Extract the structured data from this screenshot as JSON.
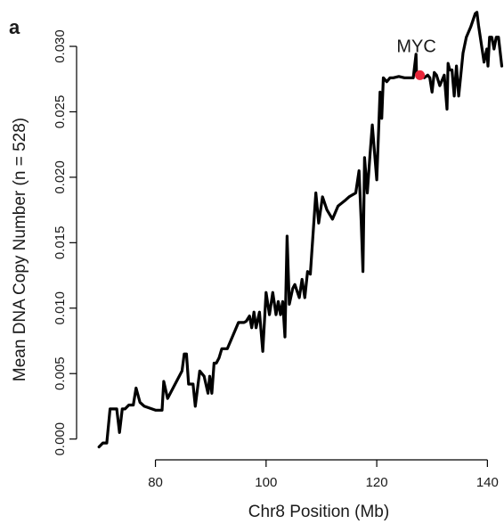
{
  "chart_data": {
    "type": "line",
    "panel_label": "a",
    "xlabel": "Chr8 Position (Mb)",
    "ylabel": "Mean DNA Copy Number (n = 528)",
    "xlim": [
      68,
      143
    ],
    "ylim": [
      -0.0005,
      0.0315
    ],
    "x_ticks": [
      {
        "value": 80,
        "label": "80"
      },
      {
        "value": 100,
        "label": "100"
      },
      {
        "value": 120,
        "label": "120"
      },
      {
        "value": 140,
        "label": "140"
      }
    ],
    "y_ticks": [
      {
        "value": 0.0,
        "label": "0.000"
      },
      {
        "value": 0.005,
        "label": "0.005"
      },
      {
        "value": 0.01,
        "label": "0.010"
      },
      {
        "value": 0.015,
        "label": "0.015"
      },
      {
        "value": 0.02,
        "label": "0.020"
      },
      {
        "value": 0.025,
        "label": "0.025"
      },
      {
        "value": 0.03,
        "label": "0.030"
      }
    ],
    "grid": false,
    "series": [
      {
        "color": "#000000",
        "x": [
          69.8,
          70.5,
          71.2,
          71.8,
          72.2,
          73.0,
          73.5,
          74.0,
          74.5,
          75.2,
          76.0,
          76.5,
          77.2,
          78.0,
          80.0,
          81.2,
          81.5,
          82.2,
          84.8,
          85.2,
          85.6,
          86.0,
          86.8,
          87.2,
          88.0,
          88.8,
          89.5,
          89.8,
          90.2,
          90.6,
          91.0,
          91.5,
          92.0,
          93.0,
          95.0,
          96.0,
          96.4,
          97.0,
          97.4,
          97.8,
          98.2,
          98.8,
          99.4,
          100.0,
          100.6,
          101.2,
          101.8,
          102.2,
          102.6,
          103.0,
          103.4,
          103.8,
          104.2,
          104.8,
          105.2,
          106.0,
          106.5,
          107.0,
          107.5,
          108.0,
          109.0,
          109.5,
          110.2,
          111.0,
          112.0,
          113.0,
          114.2,
          115.0,
          116.2,
          116.8,
          117.2,
          117.5,
          117.8,
          118.3,
          118.8,
          119.2,
          120.0,
          120.6,
          120.9,
          121.2,
          121.8,
          122.4,
          123.0,
          124.0,
          125.0,
          125.8,
          126.6,
          127.1,
          127.2,
          127.4,
          127.8,
          128.6,
          129.2,
          129.6,
          130.0,
          130.4,
          130.8,
          131.4,
          132.2,
          132.7,
          132.9,
          133.2,
          133.6,
          134.0,
          134.4,
          134.8,
          135.6,
          136.2,
          137.0,
          137.4,
          137.8,
          138.1,
          138.4,
          138.9,
          139.4,
          139.9,
          140.1,
          140.4,
          140.8,
          141.2,
          141.6,
          142.0,
          142.6
        ],
        "y": [
          -0.0006,
          -0.0003,
          -0.0003,
          0.0023,
          0.0023,
          0.0023,
          0.0005,
          0.0023,
          0.0023,
          0.0026,
          0.0026,
          0.0039,
          0.0028,
          0.0025,
          0.0022,
          0.0022,
          0.0044,
          0.0031,
          0.0052,
          0.0065,
          0.0065,
          0.0042,
          0.0042,
          0.0025,
          0.0052,
          0.0048,
          0.0035,
          0.0048,
          0.0035,
          0.0058,
          0.0058,
          0.0062,
          0.0069,
          0.0069,
          0.0089,
          0.0089,
          0.009,
          0.0094,
          0.0085,
          0.0097,
          0.0085,
          0.0097,
          0.0067,
          0.0112,
          0.0095,
          0.0112,
          0.0095,
          0.0105,
          0.0095,
          0.0105,
          0.0078,
          0.0155,
          0.0103,
          0.0115,
          0.0118,
          0.0108,
          0.0122,
          0.0108,
          0.0128,
          0.0126,
          0.0188,
          0.0165,
          0.0185,
          0.0175,
          0.0168,
          0.0178,
          0.0182,
          0.0185,
          0.0188,
          0.0205,
          0.0165,
          0.0128,
          0.0215,
          0.0188,
          0.0218,
          0.024,
          0.0198,
          0.0265,
          0.0245,
          0.0276,
          0.0273,
          0.0276,
          0.0276,
          0.0277,
          0.0276,
          0.0276,
          0.0276,
          0.0294,
          0.0278,
          0.0278,
          0.0278,
          0.0276,
          0.0278,
          0.0276,
          0.0265,
          0.028,
          0.0278,
          0.027,
          0.0278,
          0.0252,
          0.0287,
          0.0282,
          0.0282,
          0.0262,
          0.0285,
          0.0262,
          0.0295,
          0.0307,
          0.0315,
          0.032,
          0.0325,
          0.0326,
          0.0316,
          0.0302,
          0.0288,
          0.0298,
          0.0285,
          0.0307,
          0.0307,
          0.0298,
          0.0307,
          0.0307,
          0.0285
        ]
      }
    ],
    "annotations": [
      {
        "text": "MYC",
        "x": 127.8,
        "y": 0.0278,
        "marker_color": "#e8273a"
      }
    ]
  }
}
